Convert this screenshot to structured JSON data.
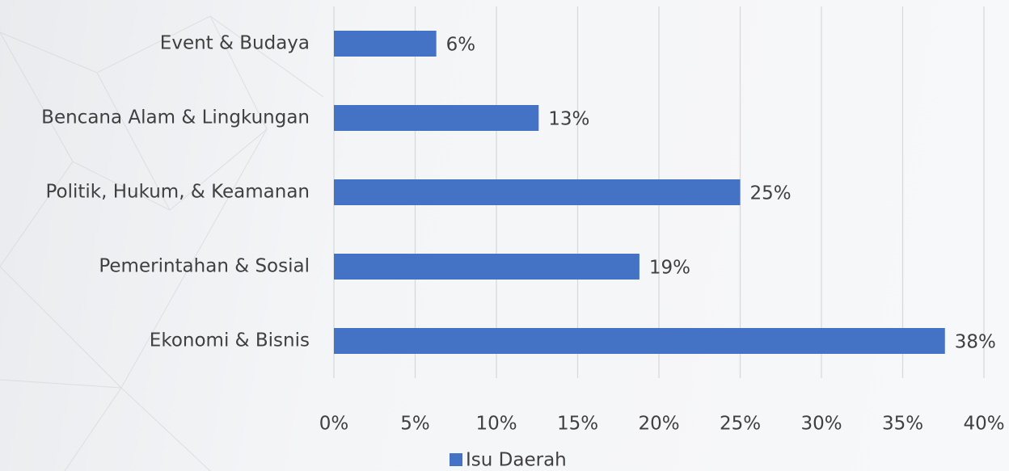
{
  "chart_data": {
    "type": "bar",
    "orientation": "horizontal",
    "categories": [
      "Event & Budaya",
      "Bencana Alam & Lingkungan",
      "Politik, Hukum, & Keamanan",
      "Pemerintahan & Sosial",
      "Ekonomi & Bisnis"
    ],
    "series": [
      {
        "name": "Isu Daerah",
        "color": "#4472c4",
        "values": [
          6.3,
          12.6,
          25.0,
          18.8,
          37.6
        ],
        "value_labels": [
          "6%",
          "13%",
          "25%",
          "19%",
          "38%"
        ]
      }
    ],
    "xlim": [
      0,
      40
    ],
    "xticks": [
      {
        "value": 0,
        "label": "0%"
      },
      {
        "value": 5,
        "label": "5%"
      },
      {
        "value": 10,
        "label": "10%"
      },
      {
        "value": 15,
        "label": "15%"
      },
      {
        "value": 20,
        "label": "20%"
      },
      {
        "value": 25,
        "label": "25%"
      },
      {
        "value": 30,
        "label": "30%"
      },
      {
        "value": 35,
        "label": "35%"
      },
      {
        "value": 40,
        "label": "40%"
      }
    ],
    "grid": true,
    "legend": "bottom"
  }
}
